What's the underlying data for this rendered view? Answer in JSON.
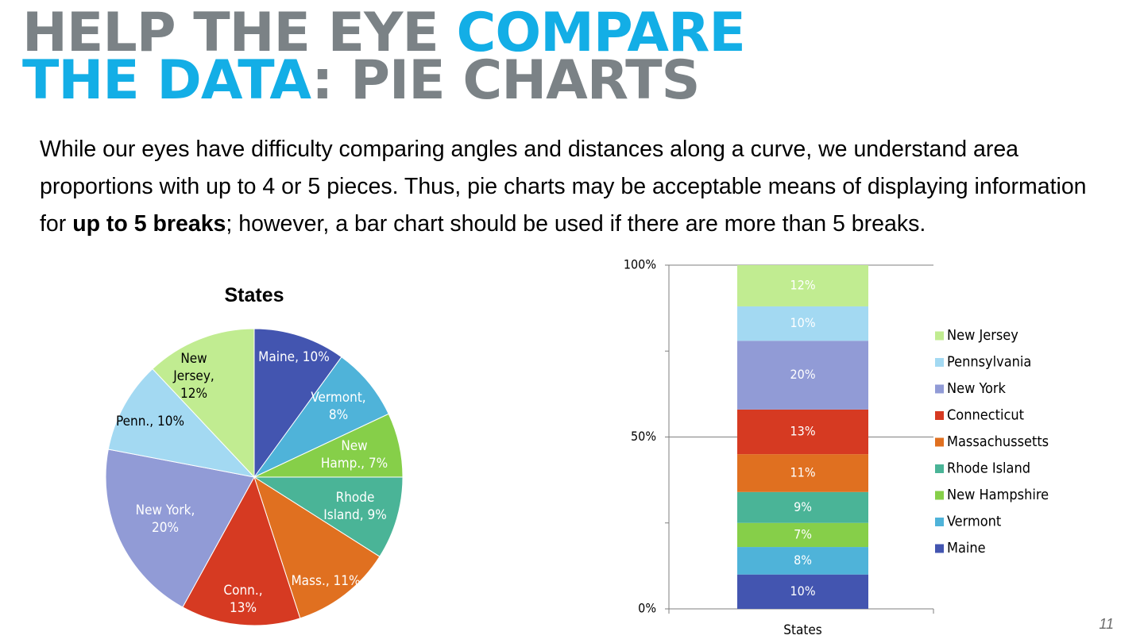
{
  "slide": {
    "title_line1_gray": "HELP THE EYE ",
    "title_line1_blue": "COMPARE",
    "title_line2_blue": "THE DATA",
    "title_line2_gray": ": PIE CHARTS",
    "body_part1": "While our eyes have difficulty comparing angles and distances along a curve, we understand area proportions with up to 4 or 5 pieces.  Thus, pie charts may be acceptable means of displaying information for ",
    "body_bold": "up to 5 breaks",
    "body_part2": "; however, a bar chart should be used if there are more than 5 breaks.",
    "slide_number": "11"
  },
  "chart_data": [
    {
      "type": "pie",
      "title": "States",
      "slices": [
        {
          "label": "Maine, 10%",
          "value": 10,
          "color": "#4355b0",
          "label_color": "#ffffff"
        },
        {
          "label": "Vermont, 8%",
          "value": 8,
          "color": "#4fb3d9",
          "label_color": "#ffffff"
        },
        {
          "label": "New Hamp., 7%",
          "value": 7,
          "color": "#86cf49",
          "label_color": "#ffffff"
        },
        {
          "label": "Rhode Island, 9%",
          "value": 9,
          "color": "#4ab497",
          "label_color": "#ffffff"
        },
        {
          "label": "Mass., 11%",
          "value": 11,
          "color": "#e07020",
          "label_color": "#ffffff"
        },
        {
          "label": "Conn., 13%",
          "value": 13,
          "color": "#d63a22",
          "label_color": "#ffffff"
        },
        {
          "label": "New York, 20%",
          "value": 20,
          "color": "#919bd6",
          "label_color": "#ffffff"
        },
        {
          "label": "Penn., 10%",
          "value": 10,
          "color": "#a3d9f2",
          "label_color": "#000000"
        },
        {
          "label": "New Jersey, 12%",
          "value": 12,
          "color": "#c1ec91",
          "label_color": "#000000"
        }
      ]
    },
    {
      "type": "bar",
      "stacked": "100%",
      "categories": [
        "States"
      ],
      "yticks": [
        "0%",
        "50%",
        "100%"
      ],
      "ylim": [
        0,
        100
      ],
      "grid": true,
      "legend": "right",
      "series": [
        {
          "name": "Maine",
          "value": 10,
          "label": "10%",
          "color": "#4355b0"
        },
        {
          "name": "Vermont",
          "value": 8,
          "label": "8%",
          "color": "#4fb3d9"
        },
        {
          "name": "New Hampshire",
          "value": 7,
          "label": "7%",
          "color": "#86cf49"
        },
        {
          "name": "Rhode Island",
          "value": 9,
          "label": "9%",
          "color": "#4ab497"
        },
        {
          "name": "Massachussetts",
          "value": 11,
          "label": "11%",
          "color": "#e07020"
        },
        {
          "name": "Connecticut",
          "value": 13,
          "label": "13%",
          "color": "#d63a22"
        },
        {
          "name": "New York",
          "value": 20,
          "label": "20%",
          "color": "#919bd6"
        },
        {
          "name": "Pennsylvania",
          "value": 10,
          "label": "10%",
          "color": "#a3d9f2"
        },
        {
          "name": "New Jersey",
          "value": 12,
          "label": "12%",
          "color": "#c1ec91"
        }
      ]
    }
  ]
}
